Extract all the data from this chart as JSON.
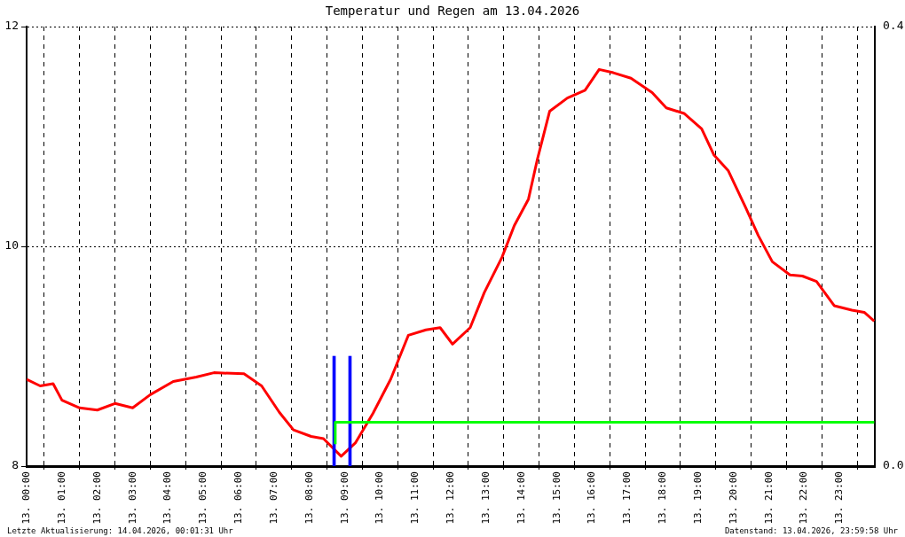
{
  "chart_data": {
    "type": "line",
    "title": "Temperatur und Regen am 13.04.2026",
    "xlim": [
      "2026-04-13T00:00",
      "2026-04-14T00:00"
    ],
    "xticks": [
      {
        "value": "2026-04-13T00:00",
        "label": "13. 00:00"
      },
      {
        "value": "2026-04-13T01:00",
        "label": "13. 01:00"
      },
      {
        "value": "2026-04-13T02:00",
        "label": "13. 02:00"
      },
      {
        "value": "2026-04-13T03:00",
        "label": "13. 03:00"
      },
      {
        "value": "2026-04-13T04:00",
        "label": "13. 04:00"
      },
      {
        "value": "2026-04-13T05:00",
        "label": "13. 05:00"
      },
      {
        "value": "2026-04-13T06:00",
        "label": "13. 06:00"
      },
      {
        "value": "2026-04-13T07:00",
        "label": "13. 07:00"
      },
      {
        "value": "2026-04-13T08:00",
        "label": "13. 08:00"
      },
      {
        "value": "2026-04-13T09:00",
        "label": "13. 09:00"
      },
      {
        "value": "2026-04-13T10:00",
        "label": "13. 10:00"
      },
      {
        "value": "2026-04-13T11:00",
        "label": "13. 11:00"
      },
      {
        "value": "2026-04-13T12:00",
        "label": "13. 12:00"
      },
      {
        "value": "2026-04-13T13:00",
        "label": "13. 13:00"
      },
      {
        "value": "2026-04-13T14:00",
        "label": "13. 14:00"
      },
      {
        "value": "2026-04-13T15:00",
        "label": "13. 15:00"
      },
      {
        "value": "2026-04-13T16:00",
        "label": "13. 16:00"
      },
      {
        "value": "2026-04-13T17:00",
        "label": "13. 17:00"
      },
      {
        "value": "2026-04-13T18:00",
        "label": "13. 18:00"
      },
      {
        "value": "2026-04-13T19:00",
        "label": "13. 19:00"
      },
      {
        "value": "2026-04-13T20:00",
        "label": "13. 20:00"
      },
      {
        "value": "2026-04-13T21:00",
        "label": "13. 21:00"
      },
      {
        "value": "2026-04-13T22:00",
        "label": "13. 22:00"
      },
      {
        "value": "2026-04-13T23:00",
        "label": "13. 23:00"
      }
    ],
    "ylim": [
      8,
      12
    ],
    "yticks": [
      8,
      10,
      12
    ],
    "y2lim": [
      0,
      0.4
    ],
    "y2ticks": [
      {
        "value": 0,
        "label": "0.0"
      },
      {
        "value": 0.4,
        "label": "0.4"
      }
    ],
    "grid": true,
    "series": [
      {
        "color": "#ff0000",
        "x": [
          "2026-04-13T00:00",
          "2026-04-13T00:23",
          "2026-04-13T00:45",
          "2026-04-13T01:00",
          "2026-04-13T01:30",
          "2026-04-13T02:00",
          "2026-04-13T02:30",
          "2026-04-13T03:00",
          "2026-04-13T03:30",
          "2026-04-13T04:09",
          "2026-04-13T04:48",
          "2026-04-13T05:18",
          "2026-04-13T06:09",
          "2026-04-13T06:39",
          "2026-04-13T07:09",
          "2026-04-13T07:33",
          "2026-04-13T08:03",
          "2026-04-13T08:24",
          "2026-04-13T08:54",
          "2026-04-13T09:18",
          "2026-04-13T09:48",
          "2026-04-13T10:18",
          "2026-04-13T10:48",
          "2026-04-13T11:18",
          "2026-04-13T11:42",
          "2026-04-13T12:03",
          "2026-04-13T12:33",
          "2026-04-13T12:57",
          "2026-04-13T13:27",
          "2026-04-13T13:48",
          "2026-04-13T14:12",
          "2026-04-13T14:27",
          "2026-04-13T14:48",
          "2026-04-13T15:18",
          "2026-04-13T15:48",
          "2026-04-13T16:12",
          "2026-04-13T16:36",
          "2026-04-13T17:06",
          "2026-04-13T17:42",
          "2026-04-13T18:06",
          "2026-04-13T18:36",
          "2026-04-13T19:06",
          "2026-04-13T19:27",
          "2026-04-13T19:51",
          "2026-04-13T20:21",
          "2026-04-13T20:42",
          "2026-04-13T21:06",
          "2026-04-13T21:36",
          "2026-04-13T21:57",
          "2026-04-13T22:21",
          "2026-04-13T22:51",
          "2026-04-13T23:21",
          "2026-04-13T23:42",
          "2026-04-13T23:59"
        ],
        "values": [
          8.79,
          8.73,
          8.75,
          8.6,
          8.53,
          8.51,
          8.57,
          8.53,
          8.65,
          8.77,
          8.81,
          8.85,
          8.84,
          8.73,
          8.49,
          8.33,
          8.27,
          8.25,
          8.09,
          8.21,
          8.48,
          8.79,
          9.19,
          9.24,
          9.26,
          9.11,
          9.26,
          9.58,
          9.9,
          10.19,
          10.43,
          10.79,
          11.23,
          11.35,
          11.42,
          11.61,
          11.58,
          11.53,
          11.4,
          11.26,
          11.21,
          11.07,
          10.83,
          10.69,
          10.35,
          10.1,
          9.86,
          9.74,
          9.73,
          9.68,
          9.46,
          9.42,
          9.4,
          9.32
        ]
      },
      {
        "type": "bar",
        "axis": "y2",
        "color": "#0000ff",
        "x": [
          "2026-04-13T08:42",
          "2026-04-13T09:09"
        ],
        "values": [
          0.1,
          0.1
        ]
      },
      {
        "type": "step",
        "axis": "y2",
        "color": "#00ff00",
        "x": [
          "2026-04-13T08:44",
          "2026-04-13T09:09",
          "2026-04-13T23:59"
        ],
        "values": [
          0.02,
          0.04,
          0.04
        ]
      }
    ],
    "annotations": [
      "Letzte Aktualisierung: 14.04.2026, 00:01:31 Uhr",
      "Datenstand: 13.04.2026, 23:59:58 Uhr"
    ]
  }
}
